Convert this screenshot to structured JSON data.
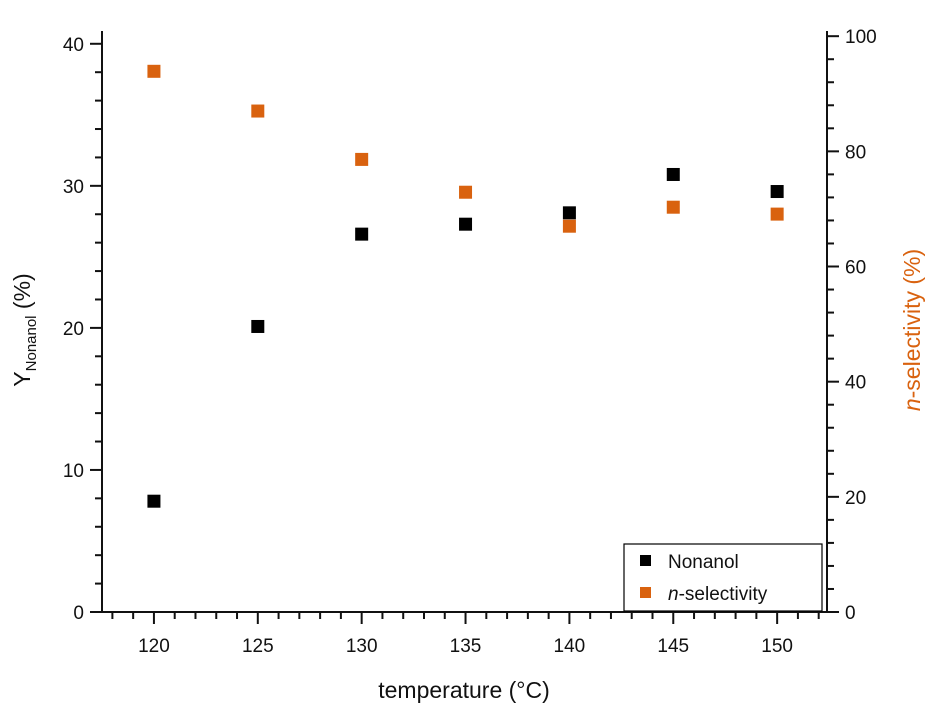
{
  "chart_data": {
    "type": "scatter",
    "xlabel": "temperature (°C)",
    "ylabel_main": "Y",
    "ylabel_sub": "Nonanol",
    "ylabel_unit": " (%)",
    "y2label_italic": "n",
    "y2label_rest": "-selectivity (%)",
    "xlim": [
      117.5,
      152.4
    ],
    "ylim": [
      0,
      40.9
    ],
    "y2lim": [
      0,
      100.9
    ],
    "xticks": [
      120,
      125,
      130,
      135,
      140,
      145,
      150
    ],
    "yticks": [
      0,
      10,
      20,
      30,
      40
    ],
    "y2ticks": [
      0,
      20,
      40,
      60,
      80,
      100
    ],
    "grid": false,
    "legend_position": "bottom-right",
    "x": [
      120,
      125,
      130,
      135,
      140,
      145,
      150
    ],
    "series": [
      {
        "name": "Nonanol",
        "name_italic": "",
        "axis": "left",
        "color": "#000000",
        "values": [
          7.8,
          20.1,
          26.6,
          27.3,
          28.1,
          30.8,
          29.6
        ]
      },
      {
        "name": "-selectivity",
        "name_italic": "n",
        "axis": "right",
        "color": "#d9620f",
        "values": [
          93.9,
          87.0,
          78.6,
          72.9,
          67.0,
          70.3,
          69.1
        ]
      }
    ],
    "colors": {
      "axis2_label": "#d9620f"
    }
  }
}
